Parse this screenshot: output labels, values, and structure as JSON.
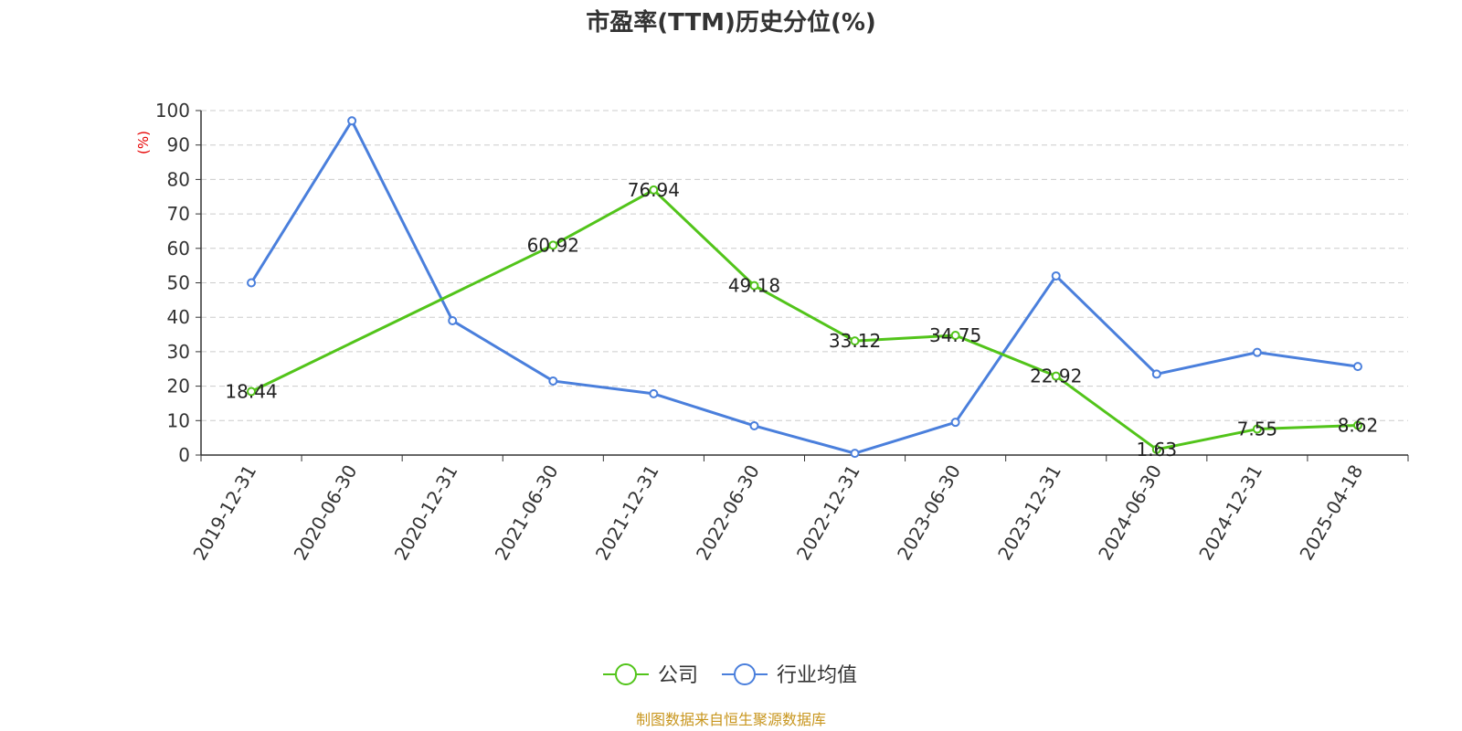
{
  "chart_data": {
    "type": "line",
    "title": "市盈率(TTM)历史分位(%)",
    "ylabel": "(%)",
    "ylim": [
      0,
      100
    ],
    "yticks": [
      0,
      10,
      20,
      30,
      40,
      50,
      60,
      70,
      80,
      90,
      100
    ],
    "grid": true,
    "legend_position": "bottom",
    "categories": [
      "2019-12-31",
      "2020-06-30",
      "2020-12-31",
      "2021-06-30",
      "2021-12-31",
      "2022-06-30",
      "2022-12-31",
      "2023-06-30",
      "2023-12-31",
      "2024-06-30",
      "2024-12-31",
      "2025-04-18"
    ],
    "series": [
      {
        "name": "公司",
        "color": "#52c41a",
        "values": [
          18.44,
          null,
          null,
          60.92,
          76.94,
          49.18,
          33.12,
          34.75,
          22.92,
          1.63,
          7.55,
          8.62
        ],
        "labels": [
          "18.44",
          null,
          null,
          "60.92",
          "76.94",
          "49.18",
          "33.12",
          "34.75",
          "22.92",
          "1.63",
          "7.55",
          "8.62"
        ]
      },
      {
        "name": "行业均值",
        "color": "#4a7fdc",
        "values": [
          50,
          97,
          39,
          21.5,
          17.8,
          8.5,
          0.5,
          9.5,
          52,
          23.5,
          29.8,
          25.7
        ]
      }
    ]
  },
  "source_note": "制图数据来自恒生聚源数据库"
}
